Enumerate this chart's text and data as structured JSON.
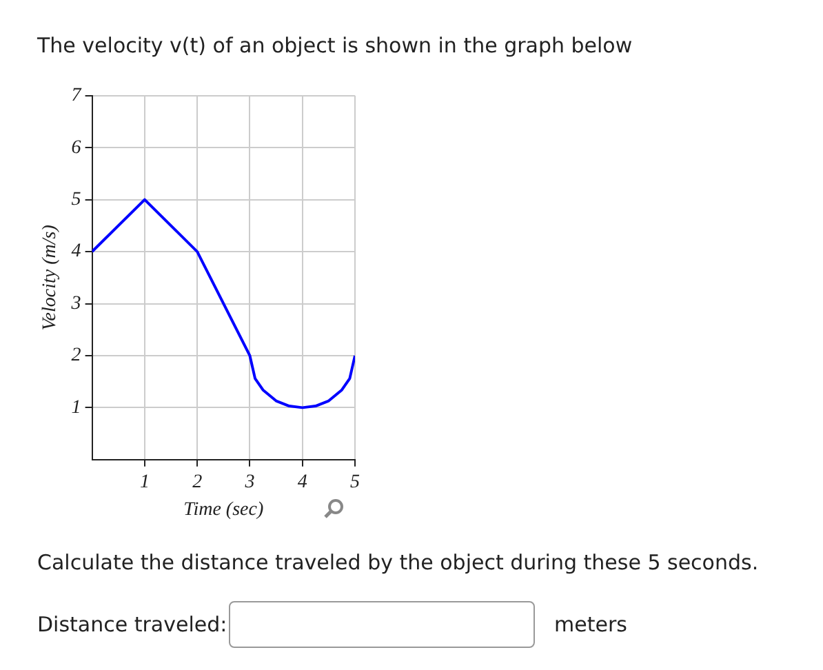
{
  "chart_data": {
    "type": "line",
    "title": "The velocity v(t) of an object is shown in the graph below",
    "xlabel": "Time (sec)",
    "ylabel": "Velocity (m/s)",
    "x": [
      0,
      1,
      2,
      3,
      3.1,
      3.25,
      3.5,
      3.75,
      4,
      4.25,
      4.5,
      4.75,
      4.9,
      5
    ],
    "values": [
      4,
      5,
      4,
      2,
      1.56,
      1.34,
      1.13,
      1.03,
      1,
      1.03,
      1.13,
      1.34,
      1.56,
      2
    ],
    "color": "#0000ff",
    "marker": "none",
    "xlim": [
      0,
      5
    ],
    "ylim": [
      0,
      7
    ],
    "xticks": [
      1,
      2,
      3,
      4,
      5
    ],
    "yticks": [
      1,
      2,
      3,
      4,
      5,
      6,
      7
    ],
    "grid": true,
    "annotations": [
      "Calculate the distance traveled by the object during these 5 seconds.",
      "Distance traveled:",
      "meters"
    ]
  }
}
